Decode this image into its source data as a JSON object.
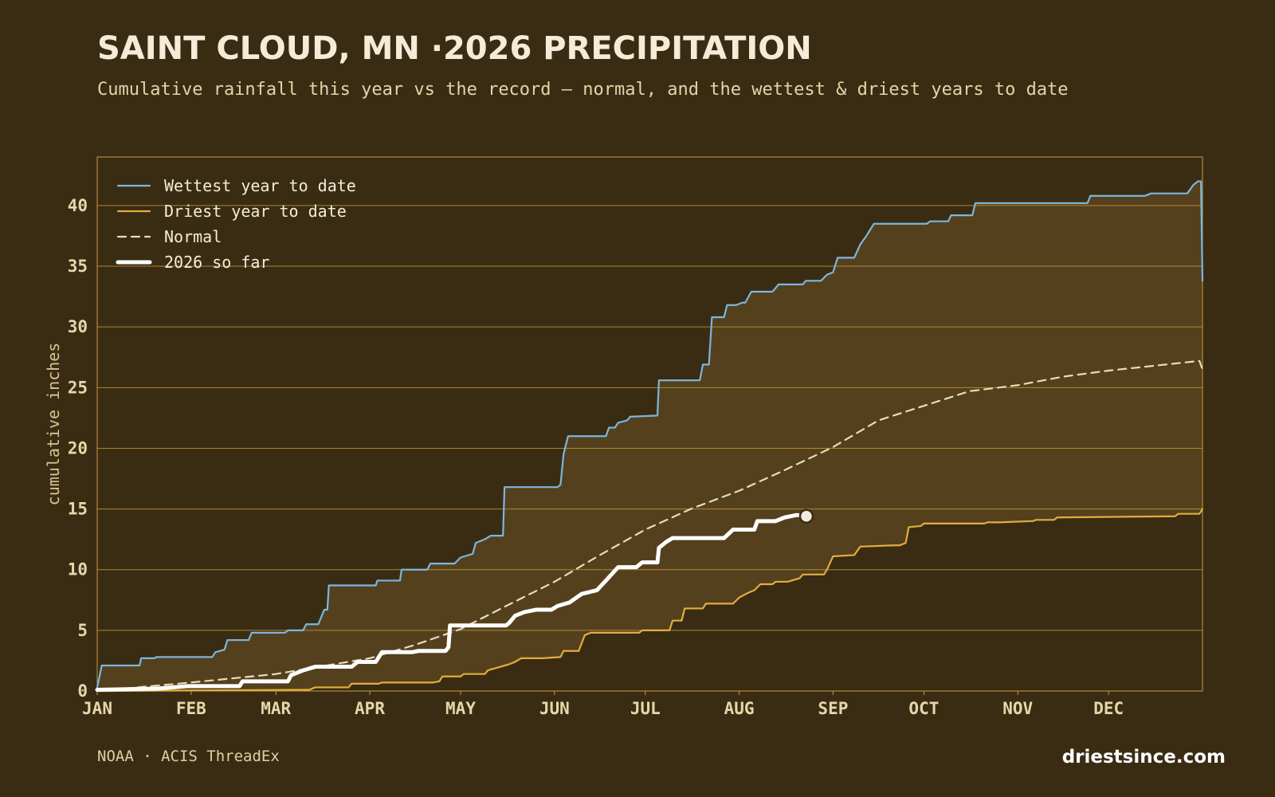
{
  "chart_data": {
    "type": "line",
    "title": "SAINT CLOUD, MN ·2026 PRECIPITATION",
    "subtitle": "Cumulative rainfall this year vs the record — normal, and the wettest & driest years to date",
    "ylabel": "cumulative inches",
    "source": "NOAA · ACIS ThreadEx",
    "brand": "driestsince.com",
    "xlim": [
      0,
      365
    ],
    "xticks": [
      {
        "value": 0,
        "label": "JAN"
      },
      {
        "value": 31,
        "label": "FEB"
      },
      {
        "value": 59,
        "label": "MAR"
      },
      {
        "value": 90,
        "label": "APR"
      },
      {
        "value": 120,
        "label": "MAY"
      },
      {
        "value": 151,
        "label": "JUN"
      },
      {
        "value": 181,
        "label": "JUL"
      },
      {
        "value": 212,
        "label": "AUG"
      },
      {
        "value": 243,
        "label": "SEP"
      },
      {
        "value": 273,
        "label": "OCT"
      },
      {
        "value": 304,
        "label": "NOV"
      },
      {
        "value": 334,
        "label": "DEC"
      }
    ],
    "ylim": [
      0,
      44
    ],
    "yticks": [
      0,
      5,
      10,
      15,
      20,
      25,
      30,
      35,
      40
    ],
    "grid": true,
    "band_color": "#55401d",
    "series": [
      {
        "name": "Wettest year to date",
        "color": "#7ab6de",
        "dashed": false,
        "highlight": false,
        "x": [
          0,
          1.5,
          14,
          14.5,
          19,
          19.5,
          38,
          39,
          42,
          43,
          50,
          51,
          62,
          63,
          68,
          69,
          73,
          75,
          76,
          76.5,
          92,
          92.5,
          100,
          100.5,
          109,
          110,
          118,
          120,
          124,
          125,
          128,
          130,
          134,
          134.5,
          152,
          153,
          154,
          155.5,
          168,
          169,
          171,
          172,
          175,
          176,
          185,
          185.5,
          199,
          200,
          202,
          203,
          207,
          208,
          211,
          213,
          214,
          216,
          223,
          225,
          233,
          234,
          239,
          241,
          243,
          244.5,
          250,
          252,
          254,
          256.5,
          274,
          275,
          281,
          282,
          289,
          290,
          327,
          328,
          346,
          348,
          360,
          362,
          363.5,
          364.5,
          365
        ],
        "values": [
          0.3,
          2.1,
          2.1,
          2.7,
          2.7,
          2.8,
          2.8,
          3.2,
          3.4,
          4.2,
          4.2,
          4.8,
          4.8,
          5.0,
          5.0,
          5.5,
          5.5,
          6.7,
          6.7,
          8.7,
          8.7,
          9.1,
          9.1,
          10.0,
          10.0,
          10.5,
          10.5,
          11,
          11.3,
          12.2,
          12.5,
          12.8,
          12.8,
          16.8,
          16.8,
          17,
          19.5,
          21,
          21,
          21.7,
          21.7,
          22.1,
          22.3,
          22.6,
          22.7,
          25.6,
          25.6,
          26.9,
          26.9,
          30.8,
          30.8,
          31.8,
          31.8,
          32,
          32,
          32.9,
          32.9,
          33.5,
          33.5,
          33.8,
          33.8,
          34.3,
          34.5,
          35.7,
          35.7,
          36.8,
          37.5,
          38.5,
          38.5,
          38.7,
          38.7,
          39.2,
          39.2,
          40.2,
          40.2,
          40.8,
          40.8,
          41,
          41,
          41.7,
          42,
          42,
          33.8
        ]
      },
      {
        "name": "Driest year to date",
        "color": "#e2ad3e",
        "dashed": false,
        "highlight": false,
        "x": [
          0,
          70,
          72,
          83,
          84,
          93,
          94,
          111,
          113,
          114,
          120,
          121,
          128,
          129,
          136,
          138,
          140,
          147,
          153,
          154,
          159,
          161,
          163,
          179,
          180,
          189,
          190,
          193,
          194,
          200,
          201,
          210,
          212,
          215,
          217,
          219,
          223,
          224,
          228,
          232,
          233,
          240,
          241,
          243,
          250,
          252,
          263,
          265,
          267,
          268,
          272,
          273,
          293,
          294,
          298,
          309,
          310,
          316,
          317,
          356,
          357,
          364,
          365
        ],
        "values": [
          0.0,
          0.1,
          0.3,
          0.3,
          0.6,
          0.6,
          0.7,
          0.7,
          0.8,
          1.2,
          1.2,
          1.4,
          1.4,
          1.7,
          2.2,
          2.4,
          2.7,
          2.7,
          2.8,
          3.3,
          3.3,
          4.6,
          4.8,
          4.8,
          5.0,
          5.0,
          5.8,
          5.8,
          6.8,
          6.8,
          7.2,
          7.2,
          7.7,
          8.1,
          8.3,
          8.8,
          8.8,
          9.0,
          9.0,
          9.3,
          9.6,
          9.6,
          10.0,
          11.1,
          11.2,
          11.9,
          12.0,
          12.0,
          12.2,
          13.5,
          13.6,
          13.8,
          13.8,
          13.9,
          13.9,
          14.0,
          14.1,
          14.1,
          14.3,
          14.4,
          14.6,
          14.6,
          15.0
        ]
      },
      {
        "name": "Normal",
        "color": "#e8dcbe",
        "dashed": true,
        "highlight": false,
        "x": [
          0,
          31,
          59,
          90,
          105,
          120,
          135,
          151,
          166,
          181,
          196,
          212,
          227,
          243,
          258,
          273,
          288,
          304,
          319,
          334,
          349,
          364,
          365
        ],
        "values": [
          0,
          0.7,
          1.4,
          2.7,
          3.8,
          5.1,
          7.0,
          9.0,
          11.2,
          13.3,
          15.0,
          16.5,
          18.2,
          20.1,
          22.3,
          23.5,
          24.7,
          25.2,
          25.9,
          26.4,
          26.8,
          27.2,
          26.5
        ]
      },
      {
        "name": "2026 so far",
        "color": "#ffffff",
        "dashed": false,
        "highlight": true,
        "x": [
          0,
          20,
          30,
          47,
          48,
          63,
          64,
          68,
          72,
          84,
          86,
          92,
          94,
          104,
          106,
          115,
          116,
          116.5,
          135,
          136,
          138,
          141,
          145,
          150,
          152,
          156,
          160,
          165,
          168,
          172,
          178,
          180,
          185,
          185.5,
          188,
          190,
          207,
          210,
          217,
          218,
          224,
          227,
          231,
          234.2
        ],
        "values": [
          0.1,
          0.2,
          0.4,
          0.4,
          0.8,
          0.8,
          1.3,
          1.7,
          2.0,
          2.0,
          2.4,
          2.4,
          3.2,
          3.2,
          3.3,
          3.3,
          3.6,
          5.4,
          5.4,
          5.6,
          6.2,
          6.5,
          6.7,
          6.7,
          7.0,
          7.3,
          8.0,
          8.3,
          9.1,
          10.2,
          10.2,
          10.6,
          10.6,
          11.8,
          12.3,
          12.6,
          12.6,
          13.3,
          13.3,
          14.0,
          14.0,
          14.3,
          14.5,
          14.4
        ]
      }
    ]
  }
}
